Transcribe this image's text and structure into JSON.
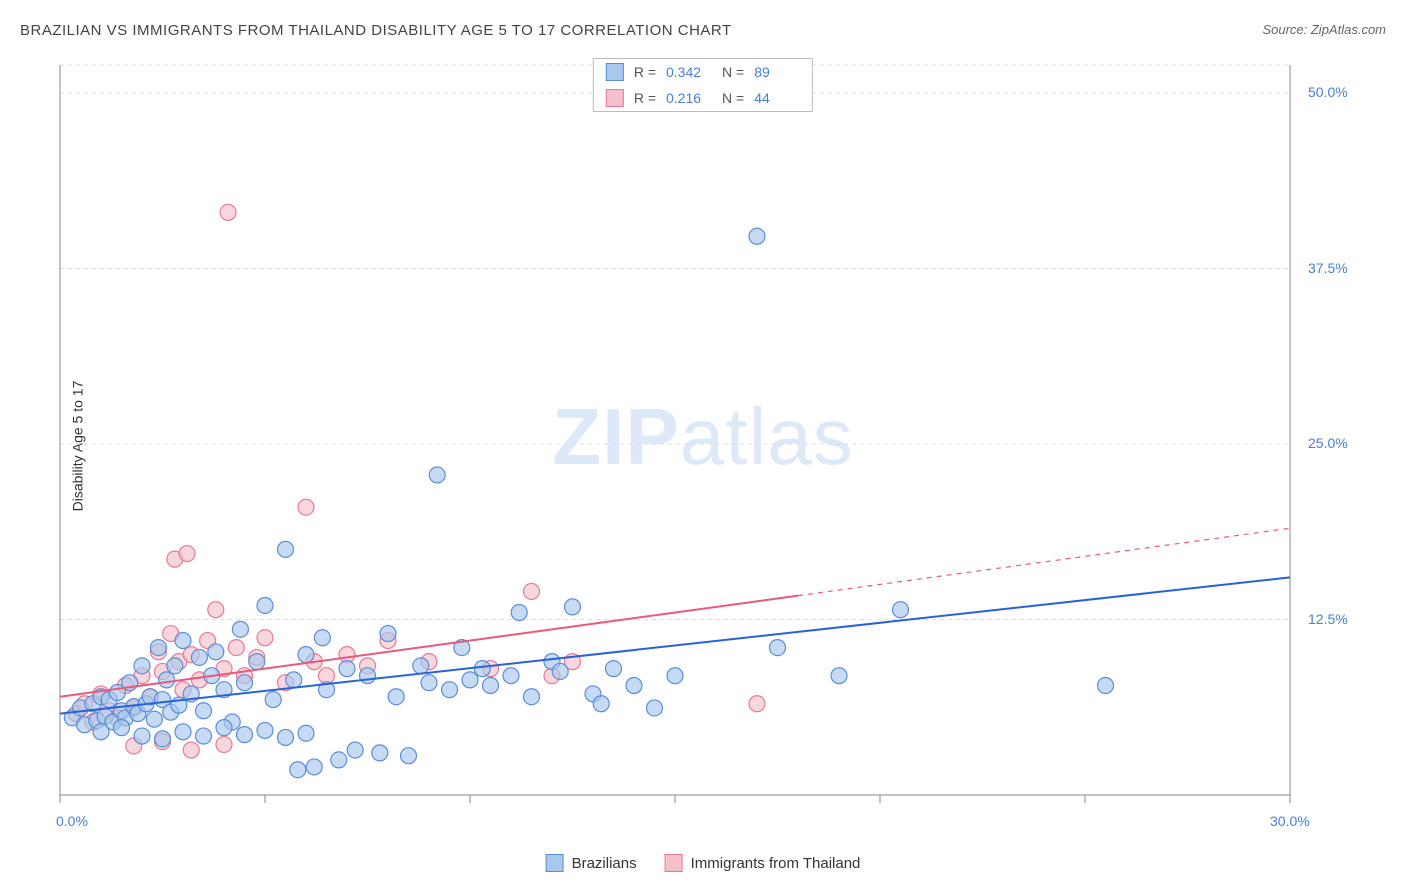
{
  "title": "BRAZILIAN VS IMMIGRANTS FROM THAILAND DISABILITY AGE 5 TO 17 CORRELATION CHART",
  "source": "Source: ZipAtlas.com",
  "y_axis_label": "Disability Age 5 to 17",
  "watermark_bold": "ZIP",
  "watermark_light": "atlas",
  "chart": {
    "type": "scatter",
    "xlim": [
      0,
      30
    ],
    "ylim": [
      0,
      52
    ],
    "x_ticks": [
      0,
      30
    ],
    "x_tick_labels": [
      "0.0%",
      "30.0%"
    ],
    "x_minor_ticks": [
      5,
      10,
      15,
      20,
      25
    ],
    "y_ticks": [
      12.5,
      25.0,
      37.5,
      50.0
    ],
    "y_tick_labels": [
      "12.5%",
      "25.0%",
      "37.5%",
      "50.0%"
    ],
    "grid_color": "#dddddd",
    "axis_color": "#888888",
    "background_color": "#ffffff",
    "marker_radius": 8,
    "marker_stroke_width": 1.2,
    "line_width": 2
  },
  "series": [
    {
      "name": "Brazilians",
      "label": "Brazilians",
      "R": "0.342",
      "N": "89",
      "fill_color": "#a8c8ed",
      "stroke_color": "#5a8dd8",
      "line_color": "#2962d8",
      "trend": {
        "x1": 0,
        "y1": 5.8,
        "x2": 30,
        "y2": 15.5,
        "solid_until_x": 30
      },
      "points": [
        [
          0.3,
          5.5
        ],
        [
          0.5,
          6.2
        ],
        [
          0.6,
          5.0
        ],
        [
          0.8,
          6.5
        ],
        [
          0.9,
          5.3
        ],
        [
          1.0,
          7.0
        ],
        [
          1.1,
          5.6
        ],
        [
          1.2,
          6.8
        ],
        [
          1.3,
          5.2
        ],
        [
          1.4,
          7.3
        ],
        [
          1.5,
          6.0
        ],
        [
          1.6,
          5.5
        ],
        [
          1.7,
          8.0
        ],
        [
          1.8,
          6.3
        ],
        [
          1.9,
          5.8
        ],
        [
          2.0,
          9.2
        ],
        [
          2.1,
          6.5
        ],
        [
          2.2,
          7.0
        ],
        [
          2.3,
          5.4
        ],
        [
          2.4,
          10.5
        ],
        [
          2.5,
          6.8
        ],
        [
          2.6,
          8.2
        ],
        [
          2.7,
          5.9
        ],
        [
          2.8,
          9.2
        ],
        [
          2.9,
          6.4
        ],
        [
          3.0,
          11.0
        ],
        [
          3.2,
          7.2
        ],
        [
          3.4,
          9.8
        ],
        [
          3.5,
          6.0
        ],
        [
          3.7,
          8.5
        ],
        [
          3.8,
          10.2
        ],
        [
          4.0,
          7.5
        ],
        [
          4.2,
          5.2
        ],
        [
          4.4,
          11.8
        ],
        [
          4.5,
          8.0
        ],
        [
          4.8,
          9.5
        ],
        [
          5.0,
          13.5
        ],
        [
          5.2,
          6.8
        ],
        [
          5.5,
          17.5
        ],
        [
          5.7,
          8.2
        ],
        [
          5.8,
          1.8
        ],
        [
          6.0,
          10.0
        ],
        [
          6.2,
          2.0
        ],
        [
          6.4,
          11.2
        ],
        [
          6.5,
          7.5
        ],
        [
          6.8,
          2.5
        ],
        [
          7.0,
          9.0
        ],
        [
          7.2,
          3.2
        ],
        [
          7.5,
          8.5
        ],
        [
          7.8,
          3.0
        ],
        [
          8.0,
          11.5
        ],
        [
          8.2,
          7.0
        ],
        [
          8.5,
          2.8
        ],
        [
          8.8,
          9.2
        ],
        [
          9.0,
          8.0
        ],
        [
          9.2,
          22.8
        ],
        [
          9.5,
          7.5
        ],
        [
          9.8,
          10.5
        ],
        [
          10.0,
          8.2
        ],
        [
          10.3,
          9.0
        ],
        [
          10.5,
          7.8
        ],
        [
          11.0,
          8.5
        ],
        [
          11.2,
          13.0
        ],
        [
          11.5,
          7.0
        ],
        [
          12.0,
          9.5
        ],
        [
          12.2,
          8.8
        ],
        [
          12.5,
          13.4
        ],
        [
          13.0,
          7.2
        ],
        [
          13.2,
          6.5
        ],
        [
          13.5,
          9.0
        ],
        [
          14.0,
          7.8
        ],
        [
          14.5,
          6.2
        ],
        [
          15.0,
          8.5
        ],
        [
          17.0,
          39.8
        ],
        [
          17.5,
          10.5
        ],
        [
          19.0,
          8.5
        ],
        [
          20.5,
          13.2
        ],
        [
          25.5,
          7.8
        ],
        [
          1.0,
          4.5
        ],
        [
          1.5,
          4.8
        ],
        [
          2.0,
          4.2
        ],
        [
          2.5,
          4.0
        ],
        [
          3.0,
          4.5
        ],
        [
          3.5,
          4.2
        ],
        [
          4.0,
          4.8
        ],
        [
          4.5,
          4.3
        ],
        [
          5.0,
          4.6
        ],
        [
          5.5,
          4.1
        ],
        [
          6.0,
          4.4
        ]
      ]
    },
    {
      "name": "Immigrants from Thailand",
      "label": "Immigrants from Thailand",
      "R": "0.216",
      "N": "44",
      "fill_color": "#f5c0cb",
      "stroke_color": "#e87a94",
      "line_color": "#e85a7a",
      "trend": {
        "x1": 0,
        "y1": 7.0,
        "x2": 30,
        "y2": 19.0,
        "solid_until_x": 18
      },
      "points": [
        [
          0.4,
          5.8
        ],
        [
          0.6,
          6.5
        ],
        [
          0.8,
          5.2
        ],
        [
          1.0,
          7.2
        ],
        [
          1.2,
          6.0
        ],
        [
          1.4,
          5.5
        ],
        [
          1.6,
          7.8
        ],
        [
          1.8,
          6.2
        ],
        [
          2.0,
          8.5
        ],
        [
          2.2,
          7.0
        ],
        [
          2.4,
          10.2
        ],
        [
          2.5,
          8.8
        ],
        [
          2.7,
          11.5
        ],
        [
          2.8,
          16.8
        ],
        [
          2.9,
          9.5
        ],
        [
          3.0,
          7.5
        ],
        [
          3.1,
          17.2
        ],
        [
          3.2,
          10.0
        ],
        [
          3.4,
          8.2
        ],
        [
          3.6,
          11.0
        ],
        [
          3.8,
          13.2
        ],
        [
          4.0,
          9.0
        ],
        [
          4.1,
          41.5
        ],
        [
          4.3,
          10.5
        ],
        [
          4.5,
          8.5
        ],
        [
          4.8,
          9.8
        ],
        [
          5.0,
          11.2
        ],
        [
          5.5,
          8.0
        ],
        [
          6.0,
          20.5
        ],
        [
          6.2,
          9.5
        ],
        [
          6.5,
          8.5
        ],
        [
          7.0,
          10.0
        ],
        [
          7.5,
          9.2
        ],
        [
          8.0,
          11.0
        ],
        [
          9.0,
          9.5
        ],
        [
          10.5,
          9.0
        ],
        [
          11.5,
          14.5
        ],
        [
          12.0,
          8.5
        ],
        [
          12.5,
          9.5
        ],
        [
          17.0,
          6.5
        ],
        [
          1.8,
          3.5
        ],
        [
          2.5,
          3.8
        ],
        [
          3.2,
          3.2
        ],
        [
          4.0,
          3.6
        ]
      ]
    }
  ],
  "legend": {
    "top": {
      "R_label": "R =",
      "N_label": "N ="
    },
    "bottom_labels": [
      "Brazilians",
      "Immigrants from Thailand"
    ]
  }
}
